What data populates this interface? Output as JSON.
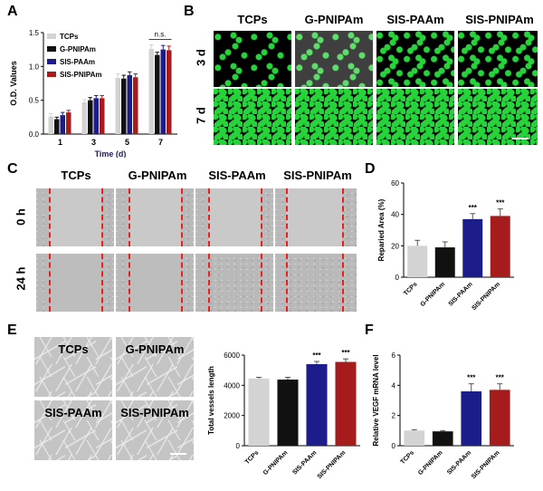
{
  "panel_labels": {
    "A": "A",
    "B": "B",
    "C": "C",
    "D": "D",
    "E": "E",
    "F": "F"
  },
  "colors": {
    "tcps": "#d3d3d3",
    "gpnipam": "#111111",
    "sispaam": "#1c1c8a",
    "sispnipam": "#a61b1b",
    "green": "#27d33a",
    "dash": "#e8201e"
  },
  "B": {
    "columns": [
      "TCPs",
      "G-PNIPAm",
      "SIS-PAAm",
      "SIS-PNIPAm"
    ],
    "rows": [
      "3 d",
      "7 d"
    ]
  },
  "C": {
    "columns": [
      "TCPs",
      "G-PNIPAm",
      "SIS-PAAm",
      "SIS-PNIPAm"
    ],
    "rows": [
      "0 h",
      "24 h"
    ]
  },
  "E_images": {
    "labels": [
      "TCPs",
      "G-PNIPAm",
      "SIS-PAAm",
      "SIS-PNIPAm"
    ]
  },
  "chart_data": [
    {
      "type": "bar",
      "panel": "A",
      "categories": [
        "1",
        "3",
        "5",
        "7"
      ],
      "series": [
        {
          "name": "TCPs",
          "color": "#d3d3d3",
          "values": [
            0.26,
            0.47,
            0.83,
            1.26
          ],
          "errors": [
            0.04,
            0.04,
            0.06,
            0.06
          ]
        },
        {
          "name": "G-PNIPAm",
          "color": "#111111",
          "values": [
            0.22,
            0.5,
            0.82,
            1.17
          ],
          "errors": [
            0.03,
            0.04,
            0.05,
            0.04
          ]
        },
        {
          "name": "SIS-PAAm",
          "color": "#1c1c8a",
          "values": [
            0.28,
            0.53,
            0.87,
            1.25
          ],
          "errors": [
            0.04,
            0.04,
            0.05,
            0.06
          ]
        },
        {
          "name": "SIS-PNIPAm",
          "color": "#a61b1b",
          "values": [
            0.32,
            0.53,
            0.84,
            1.24
          ],
          "errors": [
            0.03,
            0.04,
            0.05,
            0.06
          ]
        }
      ],
      "xlabel": "Time (d)",
      "ylabel": "O.D. Values",
      "ylim": [
        0,
        1.5
      ],
      "yticks": [
        "0.0",
        "0.5",
        "1.0",
        "1.5"
      ],
      "annotation": "n.s."
    },
    {
      "type": "bar",
      "panel": "D",
      "categories": [
        "TCPs",
        "G-PNIPAm",
        "SIS-PAAm",
        "SIS-PNIPAm"
      ],
      "colors": [
        "#d3d3d3",
        "#111111",
        "#1c1c8a",
        "#a61b1b"
      ],
      "values": [
        20,
        19,
        37,
        39
      ],
      "errors": [
        3.5,
        3.5,
        3.5,
        4.5
      ],
      "significance": [
        "",
        "",
        "***",
        "***"
      ],
      "ylabel": "Reparied Area (%)",
      "ylim": [
        0,
        60
      ],
      "yticks": [
        "0",
        "20",
        "40",
        "60"
      ]
    },
    {
      "type": "bar",
      "panel": "E",
      "categories": [
        "TCPs",
        "G-PNIPAm",
        "SIS-PAAm",
        "SIS-PNIPAm"
      ],
      "colors": [
        "#d3d3d3",
        "#111111",
        "#1c1c8a",
        "#a61b1b"
      ],
      "values": [
        4450,
        4380,
        5400,
        5550
      ],
      "errors": [
        80,
        150,
        180,
        200
      ],
      "significance": [
        "",
        "",
        "***",
        "***"
      ],
      "ylabel": "Total vessels length",
      "ylim": [
        0,
        6000
      ],
      "yticks": [
        "0",
        "2000",
        "4000",
        "6000"
      ]
    },
    {
      "type": "bar",
      "panel": "F",
      "categories": [
        "TCPs",
        "G-PNIPAm",
        "SIS-PAAm",
        "SIS-PNIPAm"
      ],
      "colors": [
        "#d3d3d3",
        "#111111",
        "#1c1c8a",
        "#a61b1b"
      ],
      "values": [
        1.0,
        0.95,
        3.6,
        3.7
      ],
      "errors": [
        0.06,
        0.05,
        0.5,
        0.4
      ],
      "significance": [
        "",
        "",
        "***",
        "***"
      ],
      "ylabel": "Relative VEGF mRNA level",
      "ylim": [
        0,
        6
      ],
      "yticks": [
        "0",
        "2",
        "4",
        "6"
      ]
    }
  ]
}
